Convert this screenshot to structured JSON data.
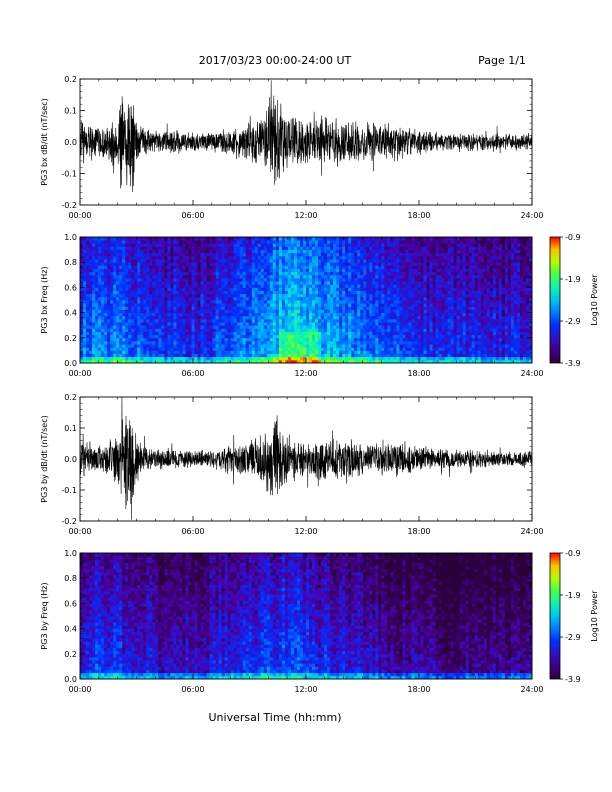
{
  "header": {
    "title": "2017/03/23  00:00-24:00 UT",
    "page": "Page 1/1"
  },
  "footer": {
    "xlabel": "Universal Time (hh:mm)"
  },
  "colors": {
    "trace": "#000000",
    "background": "#ffffff"
  },
  "chart_data": [
    {
      "type": "line",
      "ylabel": "PG3 bx dB/dt (nT/sec)",
      "xlim": [
        0,
        24
      ],
      "ylim": [
        -0.2,
        0.2
      ],
      "x_ticks": [
        "00:00",
        "06:00",
        "12:00",
        "18:00",
        "24:00"
      ],
      "y_ticks": [
        "-0.2",
        "-0.1",
        "0.0",
        "0.1",
        "0.2"
      ],
      "envelope": {
        "hours": [
          0,
          0.5,
          1,
          1.5,
          2,
          2.4,
          2.7,
          3,
          3.5,
          4,
          5,
          6,
          7,
          8,
          9,
          9.5,
          10,
          10.3,
          10.7,
          11,
          11.5,
          12,
          13,
          14,
          15,
          16,
          17,
          18,
          19,
          20,
          21,
          22,
          23,
          24
        ],
        "amplitude": [
          0.09,
          0.06,
          0.05,
          0.06,
          0.09,
          0.2,
          0.2,
          0.09,
          0.05,
          0.04,
          0.04,
          0.035,
          0.04,
          0.05,
          0.06,
          0.08,
          0.13,
          0.17,
          0.12,
          0.1,
          0.09,
          0.08,
          0.09,
          0.08,
          0.07,
          0.065,
          0.06,
          0.045,
          0.035,
          0.03,
          0.03,
          0.03,
          0.03,
          0.03
        ]
      }
    },
    {
      "type": "heatmap",
      "ylabel": "PG3 bx Freq (Hz)",
      "xlim": [
        0,
        24
      ],
      "ylim": [
        0,
        1.0
      ],
      "x_ticks": [
        "00:00",
        "06:00",
        "12:00",
        "18:00",
        "24:00"
      ],
      "y_ticks": [
        "0.0",
        "0.2",
        "0.4",
        "0.6",
        "0.8",
        "1.0"
      ],
      "colorbar": {
        "label": "Log10 Power",
        "range": [
          -3.9,
          -0.9
        ],
        "ticks": [
          "-0.9",
          "-1.9",
          "-2.9",
          "-3.9"
        ]
      },
      "activity_hours": [
        0,
        2,
        4,
        6,
        8,
        10,
        11.5,
        12,
        14,
        16,
        18,
        20,
        22,
        24
      ],
      "activity_level": [
        0.4,
        0.42,
        0.32,
        0.3,
        0.36,
        0.5,
        0.62,
        0.55,
        0.45,
        0.38,
        0.3,
        0.28,
        0.27,
        0.27
      ]
    },
    {
      "type": "line",
      "ylabel": "PG3 by dB/dt (nT/sec)",
      "xlim": [
        0,
        24
      ],
      "ylim": [
        -0.2,
        0.2
      ],
      "x_ticks": [
        "00:00",
        "06:00",
        "12:00",
        "18:00",
        "24:00"
      ],
      "y_ticks": [
        "-0.2",
        "-0.1",
        "0.0",
        "0.1",
        "0.2"
      ],
      "envelope": {
        "hours": [
          0,
          0.5,
          1,
          1.5,
          2,
          2.4,
          2.7,
          3,
          3.5,
          4,
          5,
          6,
          7,
          8,
          9,
          9.5,
          10,
          10.3,
          10.7,
          11,
          11.5,
          12,
          13,
          14,
          15,
          16,
          17,
          18,
          19,
          20,
          21,
          22,
          23,
          24
        ],
        "amplitude": [
          0.1,
          0.06,
          0.05,
          0.06,
          0.09,
          0.2,
          0.2,
          0.09,
          0.04,
          0.035,
          0.035,
          0.03,
          0.035,
          0.05,
          0.06,
          0.08,
          0.12,
          0.17,
          0.12,
          0.08,
          0.07,
          0.07,
          0.08,
          0.07,
          0.06,
          0.06,
          0.055,
          0.05,
          0.04,
          0.035,
          0.03,
          0.03,
          0.03,
          0.03
        ]
      }
    },
    {
      "type": "heatmap",
      "ylabel": "PG3 by Freq (Hz)",
      "xlim": [
        0,
        24
      ],
      "ylim": [
        0,
        1.0
      ],
      "x_ticks": [
        "00:00",
        "06:00",
        "12:00",
        "18:00",
        "24:00"
      ],
      "y_ticks": [
        "0.0",
        "0.2",
        "0.4",
        "0.6",
        "0.8",
        "1.0"
      ],
      "colorbar": {
        "label": "Log10 Power",
        "range": [
          -3.9,
          -0.9
        ],
        "ticks": [
          "-0.9",
          "-1.9",
          "-2.9",
          "-3.9"
        ]
      },
      "activity_hours": [
        0,
        2,
        4,
        6,
        8,
        10,
        11.5,
        12,
        14,
        16,
        18,
        20,
        22,
        24
      ],
      "activity_level": [
        0.3,
        0.32,
        0.22,
        0.22,
        0.26,
        0.34,
        0.36,
        0.32,
        0.26,
        0.2,
        0.14,
        0.12,
        0.14,
        0.16
      ]
    }
  ]
}
